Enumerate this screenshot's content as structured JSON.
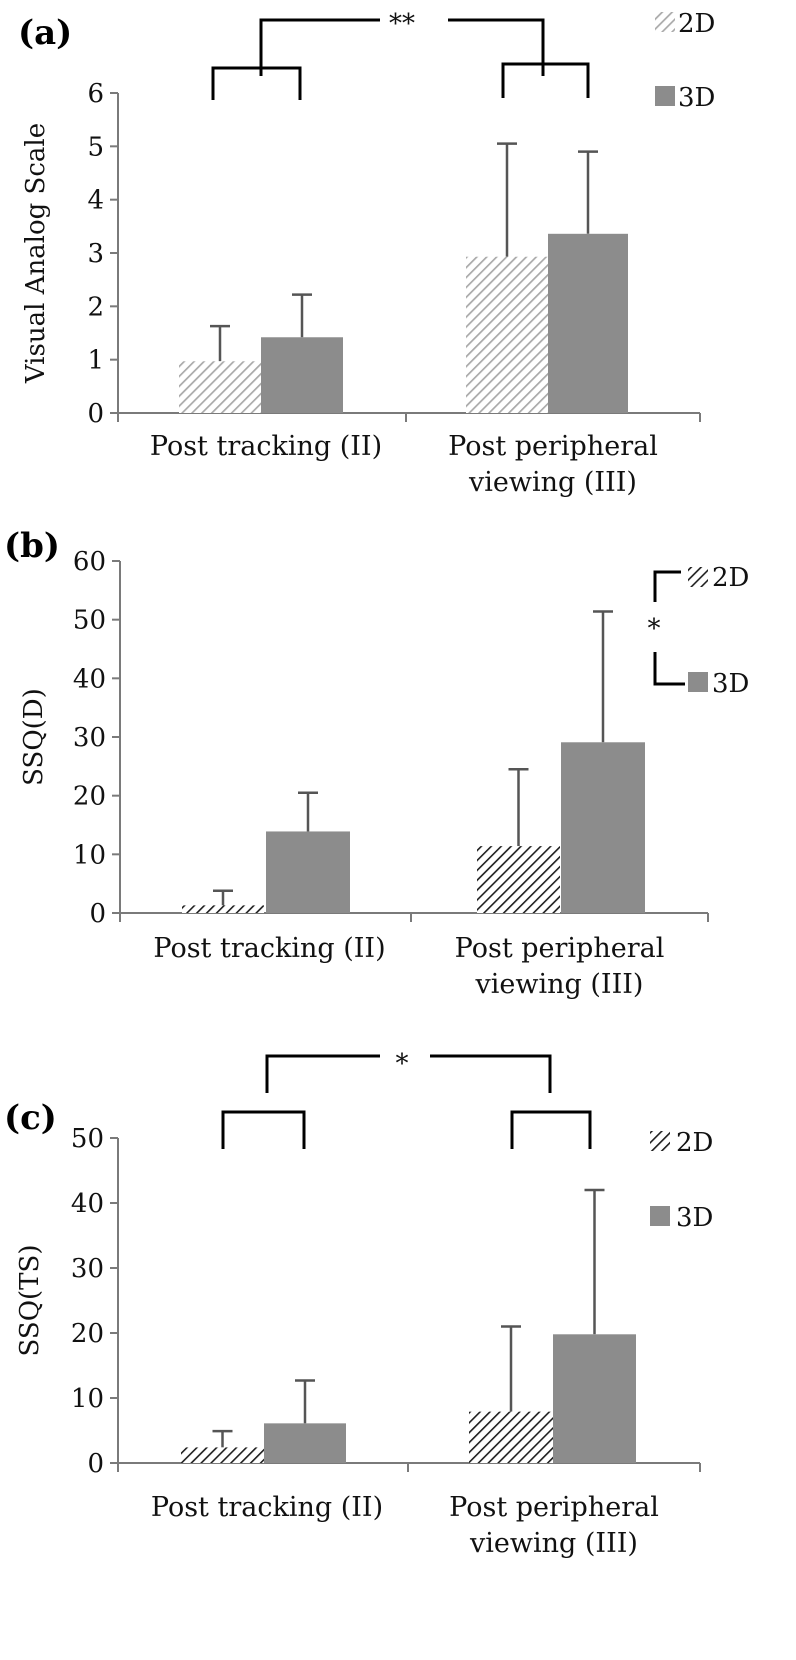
{
  "colors": {
    "solid_3d": "#8c8c8c",
    "hatch_a": "#a9a9a9",
    "hatch_dark": "#1e1e1e",
    "axis": "#7a7a7a",
    "text": "#111111",
    "bracket": "#000000"
  },
  "chart_data": [
    {
      "type": "bar",
      "panel_label": "(a)",
      "ylabel": "Visual Analog Scale",
      "ylim": [
        0,
        6
      ],
      "yticks": [
        0,
        1,
        2,
        3,
        4,
        5,
        6
      ],
      "categories": [
        "Post tracking (II)",
        "Post peripheral viewing (III)"
      ],
      "category_lines": [
        [
          "Post tracking (II)"
        ],
        [
          "Post peripheral",
          "viewing (III)"
        ]
      ],
      "series": [
        {
          "name": "2D",
          "values": [
            0.97,
            2.93
          ],
          "errors": [
            0.66,
            2.12
          ],
          "style": "hatch-light"
        },
        {
          "name": "3D",
          "values": [
            1.42,
            3.36
          ],
          "errors": [
            0.8,
            1.54
          ],
          "style": "solid"
        }
      ],
      "legend_placement": "top-right",
      "significance": [
        {
          "label": "**",
          "between": "categories"
        }
      ]
    },
    {
      "type": "bar",
      "panel_label": "(b)",
      "ylabel": "SSQ(D)",
      "ylim": [
        0,
        60
      ],
      "yticks": [
        0,
        10,
        20,
        30,
        40,
        50,
        60
      ],
      "categories": [
        "Post tracking (II)",
        "Post peripheral viewing (III)"
      ],
      "category_lines": [
        [
          "Post tracking (II)"
        ],
        [
          "Post peripheral",
          "viewing (III)"
        ]
      ],
      "series": [
        {
          "name": "2D",
          "values": [
            1.3,
            11.4
          ],
          "errors": [
            2.5,
            13.1
          ],
          "style": "hatch-dark"
        },
        {
          "name": "3D",
          "values": [
            13.9,
            29.1
          ],
          "errors": [
            6.6,
            22.3
          ],
          "style": "solid"
        }
      ],
      "legend_placement": "top-right",
      "significance": [
        {
          "label": "*",
          "between": "series"
        }
      ]
    },
    {
      "type": "bar",
      "panel_label": "(c)",
      "ylabel": "SSQ(TS)",
      "ylim": [
        0,
        50
      ],
      "yticks": [
        0,
        10,
        20,
        30,
        40,
        50
      ],
      "categories": [
        "Post tracking (II)",
        "Post peripheral viewing (III)"
      ],
      "category_lines": [
        [
          "Post tracking (II)"
        ],
        [
          "Post peripheral",
          "viewing (III)"
        ]
      ],
      "series": [
        {
          "name": "2D",
          "values": [
            2.4,
            7.9
          ],
          "errors": [
            2.5,
            13.1
          ],
          "style": "hatch-dark"
        },
        {
          "name": "3D",
          "values": [
            6.1,
            19.8
          ],
          "errors": [
            6.6,
            22.2
          ],
          "style": "solid"
        }
      ],
      "legend_placement": "top-right",
      "significance": [
        {
          "label": "*",
          "between": "categories"
        }
      ]
    }
  ]
}
